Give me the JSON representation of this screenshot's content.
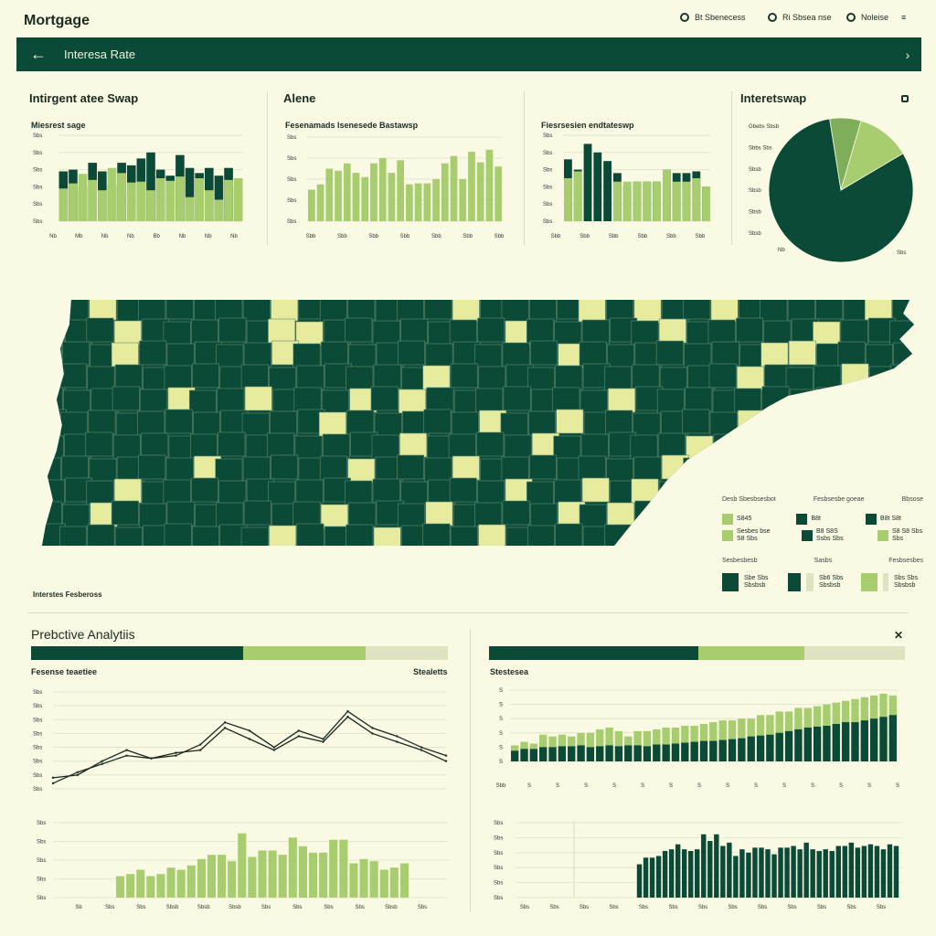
{
  "app": {
    "title": "Mortgage"
  },
  "top_actions": [
    {
      "label": "Bt Sbenecess",
      "icon": "globe-icon"
    },
    {
      "label": "Ri Sbsea nse",
      "icon": "clock-icon"
    },
    {
      "label": "Noleise",
      "icon": "info-icon"
    }
  ],
  "nav": {
    "title": "Interesa Rate",
    "back_icon": "arrow-left-icon",
    "next_icon": "chevron-right-icon"
  },
  "panels": {
    "p1": {
      "title": "Intirgent atee Swap",
      "subtitle": "Miesrest sage"
    },
    "p2": {
      "title": "Alene",
      "subtitle": "Fesenamads lsenesede Bastawsp"
    },
    "p3": {
      "subtitle": "Fiesrsesien endtateswp"
    },
    "p4": {
      "title": "Interetswap"
    }
  },
  "map": {
    "caption": "Interstes Fesbeross"
  },
  "legend": {
    "headers": [
      "Desb Sbesbsesbot",
      "Fesbsesbe goeae",
      "Bbsose"
    ],
    "row1": [
      "S845",
      "B8t",
      "B8t S8t"
    ],
    "row2": [
      "Sesbes bse S8 Sbs",
      "B8 S8S Ssbs Sbs",
      "S8 S8 Sbs Sbs"
    ],
    "headers2": [
      "Sesbesbesb",
      "Sasbs",
      "Fesbsesbes"
    ],
    "row3": [
      "Sbe Sbs Sbsbsb",
      "Sb6 Sbs Sbsbsb",
      "Sbs Sbs Sbsbsb"
    ]
  },
  "analytics": {
    "title": "Prebctive Analytiis",
    "left_label": "Fesense teaetiee",
    "left_right_label": "Stealetts",
    "right_label": "Stestesea",
    "close_icon": "close-x-icon"
  },
  "colors": {
    "dark": "#0c4a38",
    "green": "#a7cd6e",
    "light": "#dfe3c0",
    "bg": "#f9f9e4"
  },
  "chart_data": [
    {
      "type": "bar",
      "name": "panel1-bars",
      "series": [
        {
          "values": [
            58,
            60,
            40,
            68,
            58,
            42,
            68,
            65,
            73,
            80,
            60,
            53,
            77,
            62,
            56,
            62,
            53,
            62,
            40
          ]
        },
        {
          "values": [
            38,
            44,
            55,
            48,
            36,
            62,
            56,
            45,
            46,
            36,
            50,
            47,
            52,
            28,
            50,
            36,
            25,
            48,
            50
          ]
        }
      ],
      "ytick_labels": [
        "Sbs",
        "Sbs",
        "Sbs",
        "Sbs",
        "Sbs",
        "Sbs"
      ],
      "xtick_labels": [
        "Nb",
        "Mb",
        "Nb",
        "Nb",
        "Bb",
        "Nb",
        "Nb",
        "Nb"
      ]
    },
    {
      "type": "bar",
      "name": "panel2-bars",
      "values": [
        30,
        35,
        50,
        48,
        55,
        46,
        42,
        55,
        60,
        46,
        58,
        35,
        36,
        36,
        40,
        55,
        62,
        40,
        66,
        56,
        68,
        52
      ],
      "ytick_labels": [
        "Sbs",
        "Sbs",
        "Sbs",
        "Sbs",
        "Sbs"
      ],
      "xtick_labels": [
        "Sbb",
        "Sbb",
        "Sbb",
        "Sbb",
        "Sbb",
        "Sbb",
        "Sbb"
      ]
    },
    {
      "type": "bar",
      "name": "panel3-bars",
      "series": [
        {
          "values": [
            72,
            60,
            90,
            80,
            70,
            56,
            40,
            46,
            46,
            46,
            60,
            56,
            56,
            58,
            40
          ]
        },
        {
          "values": [
            50,
            58,
            70,
            72,
            56,
            46,
            46,
            46,
            46,
            46,
            60,
            46,
            46,
            50,
            40
          ]
        }
      ],
      "ytick_labels": [
        "Sbs",
        "Sbs",
        "Sbs",
        "Sbs",
        "Sbs",
        "Sbs"
      ],
      "xtick_labels": [
        "Sbb",
        "Sbb",
        "Sbb",
        "Sbb",
        "Sbb",
        "Sbb"
      ]
    },
    {
      "type": "pie",
      "name": "interest-swap-pie",
      "values": [
        81,
        7,
        12
      ],
      "ytick_labels": [
        "Gbebs Sbsb",
        "Sbbs Sbs",
        "Sbsb",
        "Sbsb",
        "Sbsb",
        "Sbsb"
      ],
      "xtick_labels": [
        "Nb",
        "Sbs"
      ]
    },
    {
      "type": "line",
      "name": "forecast-lines",
      "series": [
        {
          "values": [
            8,
            10,
            20,
            28,
            22,
            24,
            32,
            48,
            42,
            30,
            42,
            36,
            56,
            44,
            38,
            30,
            24
          ]
        },
        {
          "values": [
            4,
            12,
            18,
            24,
            22,
            26,
            28,
            44,
            36,
            28,
            38,
            34,
            52,
            40,
            34,
            28,
            20
          ]
        }
      ],
      "ytick_labels": [
        "Sbs",
        "Sbs",
        "Sbs",
        "Sbs",
        "Sbs",
        "Sbs",
        "Sbs",
        "Sbs"
      ]
    },
    {
      "type": "bar",
      "name": "forecast-bars-left",
      "values": [
        20,
        22,
        26,
        20,
        22,
        28,
        26,
        30,
        36,
        40,
        40,
        34,
        60,
        38,
        44,
        44,
        40,
        56,
        48,
        42,
        42,
        54,
        54,
        32,
        36,
        34,
        26,
        28,
        32
      ],
      "ytick_labels": [
        "Sbs",
        "Sbs",
        "Sbs",
        "Sbs",
        "Sbs"
      ],
      "xtick_labels": [
        "Sb",
        "Sbs",
        "Sbs",
        "Sbsb",
        "Sbsb",
        "Sbsb",
        "Sbs",
        "Sbs",
        "Sbs",
        "Sbs",
        "Sbsb",
        "Sbs"
      ]
    },
    {
      "type": "bar",
      "name": "forecast-stacked-right",
      "series": [
        {
          "values": [
            12,
            14,
            14,
            16,
            16,
            17,
            17,
            18,
            16,
            17,
            18,
            17,
            18,
            18,
            17,
            19,
            19,
            20,
            21,
            22,
            23,
            23,
            24,
            25,
            26,
            28,
            29,
            30,
            32,
            34,
            36,
            38,
            39,
            40,
            42,
            44,
            44,
            46,
            48,
            50,
            52
          ]
        },
        {
          "values": [
            18,
            22,
            20,
            30,
            28,
            30,
            28,
            32,
            32,
            36,
            38,
            34,
            28,
            34,
            34,
            36,
            38,
            38,
            40,
            40,
            42,
            44,
            46,
            46,
            48,
            48,
            52,
            52,
            56,
            56,
            60,
            60,
            62,
            64,
            66,
            68,
            70,
            72,
            74,
            76,
            74
          ]
        }
      ],
      "ytick_labels": [
        "S",
        "S",
        "S",
        "S",
        "S",
        "S"
      ],
      "xtick_labels": [
        "Sbb",
        "S",
        "S",
        "S",
        "S",
        "S",
        "S",
        "S",
        "S",
        "S",
        "S",
        "S",
        "S",
        "S",
        "S"
      ]
    },
    {
      "type": "bar",
      "name": "forecast-bars-right",
      "values": [
        40,
        48,
        48,
        50,
        56,
        58,
        64,
        58,
        56,
        58,
        76,
        68,
        76,
        62,
        66,
        50,
        58,
        54,
        60,
        60,
        58,
        52,
        60,
        60,
        62,
        58,
        66,
        58,
        56,
        58,
        56,
        62,
        62,
        66,
        60,
        62,
        64,
        62,
        58,
        64,
        62
      ],
      "ytick_labels": [
        "Sbs",
        "Sbs",
        "Sbs",
        "Sbs",
        "Sbs",
        "Sbs"
      ],
      "xtick_labels": [
        "Sbs",
        "Sbs",
        "Sbs",
        "Sbs",
        "Sbs",
        "Sbs",
        "Sbs",
        "Sbs",
        "Sbs",
        "Sbs",
        "Sbs",
        "Sbs",
        "Sbs"
      ]
    }
  ]
}
